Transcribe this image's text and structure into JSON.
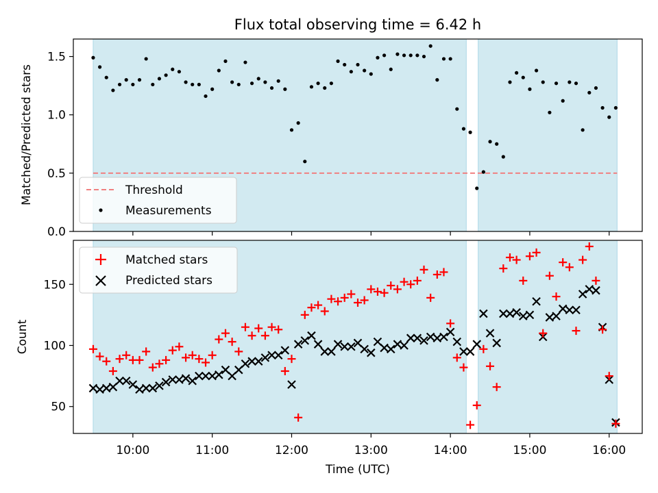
{
  "title": "Flux total observing time = 6.42 h",
  "colors": {
    "shade": "#add8e6",
    "threshold": "#f08080",
    "measurements": "#000000",
    "matched": "#ff0000",
    "predicted": "#000000"
  },
  "x_ticks": [
    "10:00",
    "11:00",
    "12:00",
    "13:00",
    "14:00",
    "15:00",
    "16:00"
  ],
  "chart_data": [
    {
      "type": "scatter",
      "ylabel": "Matched/Predicted stars",
      "xlim": [
        "09:15",
        "16:25"
      ],
      "ylim": [
        0,
        1.65
      ],
      "yticks": [
        "0.0",
        "0.5",
        "1.0",
        "1.5"
      ],
      "shaded_intervals": [
        [
          "09:30",
          "14:12"
        ],
        [
          "14:21",
          "16:06"
        ]
      ],
      "threshold": 0.5,
      "legend": {
        "placement": "lower-left",
        "threshold_label": "Threshold",
        "measurements_label": "Measurements"
      },
      "x": [
        "09:30",
        "09:35",
        "09:40",
        "09:45",
        "09:50",
        "09:55",
        "10:00",
        "10:05",
        "10:10",
        "10:15",
        "10:20",
        "10:25",
        "10:30",
        "10:35",
        "10:40",
        "10:45",
        "10:50",
        "10:55",
        "11:00",
        "11:05",
        "11:10",
        "11:15",
        "11:20",
        "11:25",
        "11:30",
        "11:35",
        "11:40",
        "11:45",
        "11:50",
        "11:55",
        "12:00",
        "12:05",
        "12:10",
        "12:15",
        "12:20",
        "12:25",
        "12:30",
        "12:35",
        "12:40",
        "12:45",
        "12:50",
        "12:55",
        "13:00",
        "13:05",
        "13:10",
        "13:15",
        "13:20",
        "13:25",
        "13:30",
        "13:35",
        "13:40",
        "13:45",
        "13:50",
        "13:55",
        "14:00",
        "14:05",
        "14:10",
        "14:15",
        "14:20",
        "14:25",
        "14:30",
        "14:35",
        "14:40",
        "14:45",
        "14:50",
        "14:55",
        "15:00",
        "15:05",
        "15:10",
        "15:15",
        "15:20",
        "15:25",
        "15:30",
        "15:35",
        "15:40",
        "15:45",
        "15:50",
        "15:55",
        "16:00",
        "16:05"
      ],
      "values": [
        1.49,
        1.41,
        1.32,
        1.21,
        1.26,
        1.3,
        1.26,
        1.3,
        1.48,
        1.26,
        1.31,
        1.34,
        1.39,
        1.37,
        1.28,
        1.26,
        1.26,
        1.16,
        1.22,
        1.38,
        1.46,
        1.28,
        1.26,
        1.45,
        1.27,
        1.31,
        1.28,
        1.23,
        1.29,
        1.22,
        0.87,
        0.93,
        0.6,
        1.24,
        1.27,
        1.23,
        1.27,
        1.46,
        1.43,
        1.37,
        1.43,
        1.38,
        1.35,
        1.49,
        1.51,
        1.39,
        1.52,
        1.51,
        1.51,
        1.51,
        1.5,
        1.59,
        1.3,
        1.48,
        1.48,
        1.05,
        0.88,
        0.85,
        0.37,
        0.51,
        0.77,
        0.75,
        0.64,
        1.28,
        1.36,
        1.32,
        1.22,
        1.38,
        1.28,
        1.02,
        1.27,
        1.12,
        1.28,
        1.27,
        0.87,
        1.19,
        1.23,
        1.06,
        0.98,
        1.06
      ]
    },
    {
      "type": "scatter",
      "xlabel": "Time (UTC)",
      "ylabel": "Count",
      "xlim": [
        "09:15",
        "16:25"
      ],
      "ylim": [
        28,
        186
      ],
      "yticks": [
        "50",
        "100",
        "150"
      ],
      "shaded_intervals": [
        [
          "09:30",
          "14:12"
        ],
        [
          "14:21",
          "16:06"
        ]
      ],
      "legend": {
        "placement": "upper-left"
      },
      "x": [
        "09:30",
        "09:35",
        "09:40",
        "09:45",
        "09:50",
        "09:55",
        "10:00",
        "10:05",
        "10:10",
        "10:15",
        "10:20",
        "10:25",
        "10:30",
        "10:35",
        "10:40",
        "10:45",
        "10:50",
        "10:55",
        "11:00",
        "11:05",
        "11:10",
        "11:15",
        "11:20",
        "11:25",
        "11:30",
        "11:35",
        "11:40",
        "11:45",
        "11:50",
        "11:55",
        "12:00",
        "12:05",
        "12:10",
        "12:15",
        "12:20",
        "12:25",
        "12:30",
        "12:35",
        "12:40",
        "12:45",
        "12:50",
        "12:55",
        "13:00",
        "13:05",
        "13:10",
        "13:15",
        "13:20",
        "13:25",
        "13:30",
        "13:35",
        "13:40",
        "13:45",
        "13:50",
        "13:55",
        "14:00",
        "14:05",
        "14:10",
        "14:15",
        "14:20",
        "14:25",
        "14:30",
        "14:35",
        "14:40",
        "14:45",
        "14:50",
        "14:55",
        "15:00",
        "15:05",
        "15:10",
        "15:15",
        "15:20",
        "15:25",
        "15:30",
        "15:35",
        "15:40",
        "15:45",
        "15:50",
        "15:55",
        "16:00",
        "16:05"
      ],
      "series": [
        {
          "name": "Matched stars",
          "marker": "+",
          "values": [
            97,
            91,
            87,
            79,
            89,
            92,
            88,
            88,
            95,
            82,
            85,
            88,
            96,
            99,
            90,
            92,
            89,
            86,
            92,
            105,
            110,
            103,
            95,
            115,
            108,
            114,
            108,
            115,
            113,
            79,
            89,
            41,
            125,
            131,
            133,
            128,
            138,
            136,
            139,
            142,
            135,
            137,
            146,
            144,
            143,
            149,
            146,
            152,
            150,
            153,
            162,
            139,
            158,
            160,
            118,
            90,
            82,
            35,
            51,
            97,
            83,
            66,
            163,
            172,
            170,
            153,
            173,
            176,
            110,
            157,
            140,
            168,
            164,
            112,
            170,
            181,
            153,
            113,
            75,
            36
          ]
        },
        {
          "name": "Predicted stars",
          "marker": "x",
          "values": [
            65,
            64,
            65,
            66,
            71,
            71,
            68,
            64,
            65,
            65,
            67,
            70,
            72,
            72,
            73,
            71,
            75,
            75,
            75,
            76,
            80,
            75,
            80,
            85,
            87,
            87,
            90,
            92,
            92,
            96,
            68,
            101,
            104,
            108,
            101,
            95,
            95,
            101,
            99,
            99,
            102,
            97,
            94,
            103,
            98,
            97,
            101,
            100,
            106,
            106,
            104,
            107,
            106,
            107,
            111,
            103,
            95,
            95,
            101,
            126,
            110,
            102,
            126,
            126,
            127,
            124,
            125,
            136,
            107,
            123,
            124,
            130,
            129,
            129,
            142,
            146,
            145,
            115,
            72,
            37
          ]
        }
      ]
    }
  ]
}
